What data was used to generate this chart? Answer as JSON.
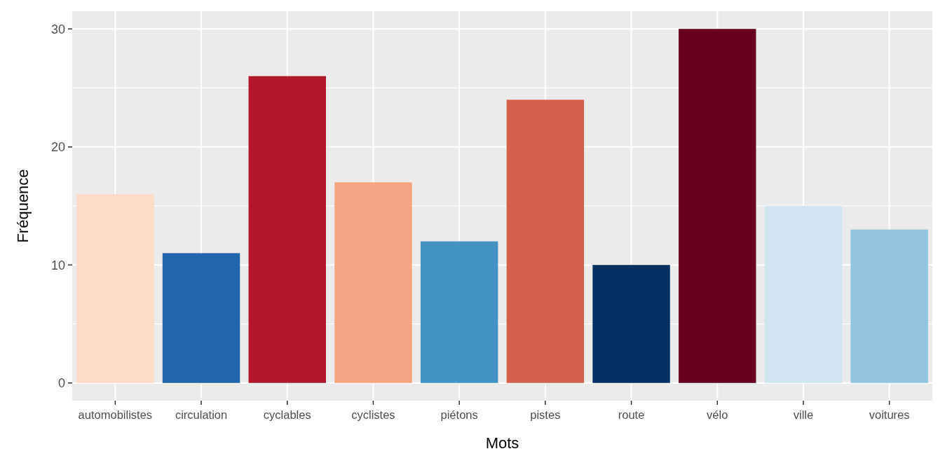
{
  "chart_data": {
    "type": "bar",
    "xlabel": "Mots",
    "ylabel": "Fréquence",
    "categories": [
      "automobilistes",
      "circulation",
      "cyclables",
      "cyclistes",
      "piétons",
      "pistes",
      "route",
      "vélo",
      "ville",
      "voitures"
    ],
    "values": [
      16,
      11,
      26,
      17,
      12,
      24,
      10,
      30,
      15,
      13
    ],
    "colors": [
      "#fddbc7",
      "#2166ac",
      "#b2182b",
      "#f4a582",
      "#4393c3",
      "#d6604d",
      "#053061",
      "#67001f",
      "#d1e5f0",
      "#92c5de"
    ],
    "ylim": [
      -1.5,
      31.5
    ],
    "yticks": [
      0,
      {
        "value": 5,
        "label": null
      },
      10,
      {
        "value": 15,
        "label": null
      },
      20,
      {
        "value": 25,
        "label": null
      },
      30
    ],
    "grid": true
  }
}
